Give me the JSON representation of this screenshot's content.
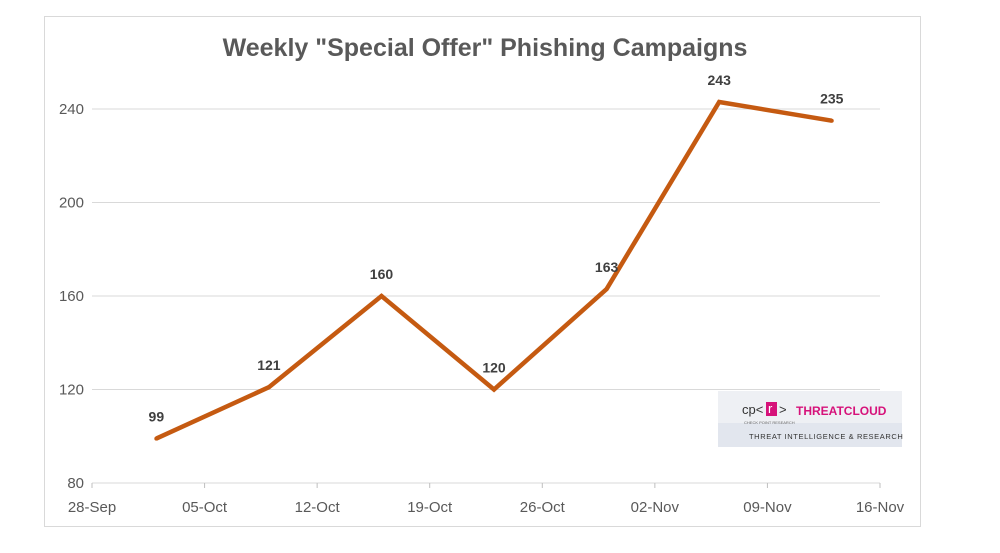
{
  "chart_data": {
    "type": "line",
    "title": "Weekly \"Special Offer\" Phishing Campaigns",
    "xlabel": "",
    "ylabel": "",
    "x_ticks": [
      "28-Sep",
      "05-Oct",
      "12-Oct",
      "19-Oct",
      "26-Oct",
      "02-Nov",
      "09-Nov",
      "16-Nov"
    ],
    "y_ticks": [
      80,
      120,
      160,
      200,
      240
    ],
    "ylim": [
      80,
      260
    ],
    "grid": true,
    "legend": "none",
    "series": [
      {
        "color": "#c55a11",
        "points": [
          {
            "x": "02-Oct",
            "y": 99
          },
          {
            "x": "09-Oct",
            "y": 121
          },
          {
            "x": "16-Oct",
            "y": 160
          },
          {
            "x": "23-Oct",
            "y": 120
          },
          {
            "x": "30-Oct",
            "y": 163
          },
          {
            "x": "06-Nov",
            "y": 243
          },
          {
            "x": "13-Nov",
            "y": 235
          }
        ]
      }
    ]
  },
  "logo": {
    "prefix": "cp<",
    "mark": "r",
    "suffix": ">",
    "brand": "THREATCLOUD",
    "tagline": "THREAT INTELLIGENCE & RESEARCH",
    "tiny": "CHECK POINT RESEARCH"
  }
}
